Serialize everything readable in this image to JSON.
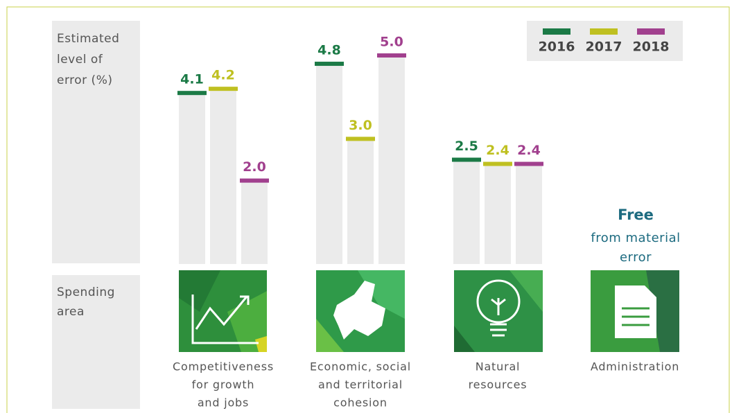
{
  "chart_data": {
    "type": "bar",
    "y_label": [
      "Estimated",
      "level of",
      "error (%)"
    ],
    "x_label": [
      "Spending",
      "area"
    ],
    "categories": [
      [
        "Competitiveness",
        "for growth",
        "and jobs"
      ],
      [
        "Economic, social",
        "and territorial",
        "cohesion"
      ],
      [
        "Natural",
        "resources"
      ],
      [
        "Administration"
      ]
    ],
    "series": [
      {
        "name": "2016",
        "color": "#1b7a46",
        "values": [
          4.1,
          4.8,
          2.5,
          null
        ],
        "value_labels": [
          "4.1",
          "4.8",
          "2.5",
          null
        ]
      },
      {
        "name": "2017",
        "color": "#bfc021",
        "values": [
          4.2,
          3.0,
          2.4,
          null
        ],
        "value_labels": [
          "4.2",
          "3.0",
          "2.4",
          null
        ]
      },
      {
        "name": "2018",
        "color": "#a1408e",
        "values": [
          2.0,
          5.0,
          2.4,
          null
        ],
        "value_labels": [
          "2.0",
          "5.0",
          "2.4",
          null
        ]
      }
    ],
    "annotation": {
      "title": "Free",
      "lines": [
        "from material",
        "error"
      ]
    },
    "legend": "top-right"
  }
}
